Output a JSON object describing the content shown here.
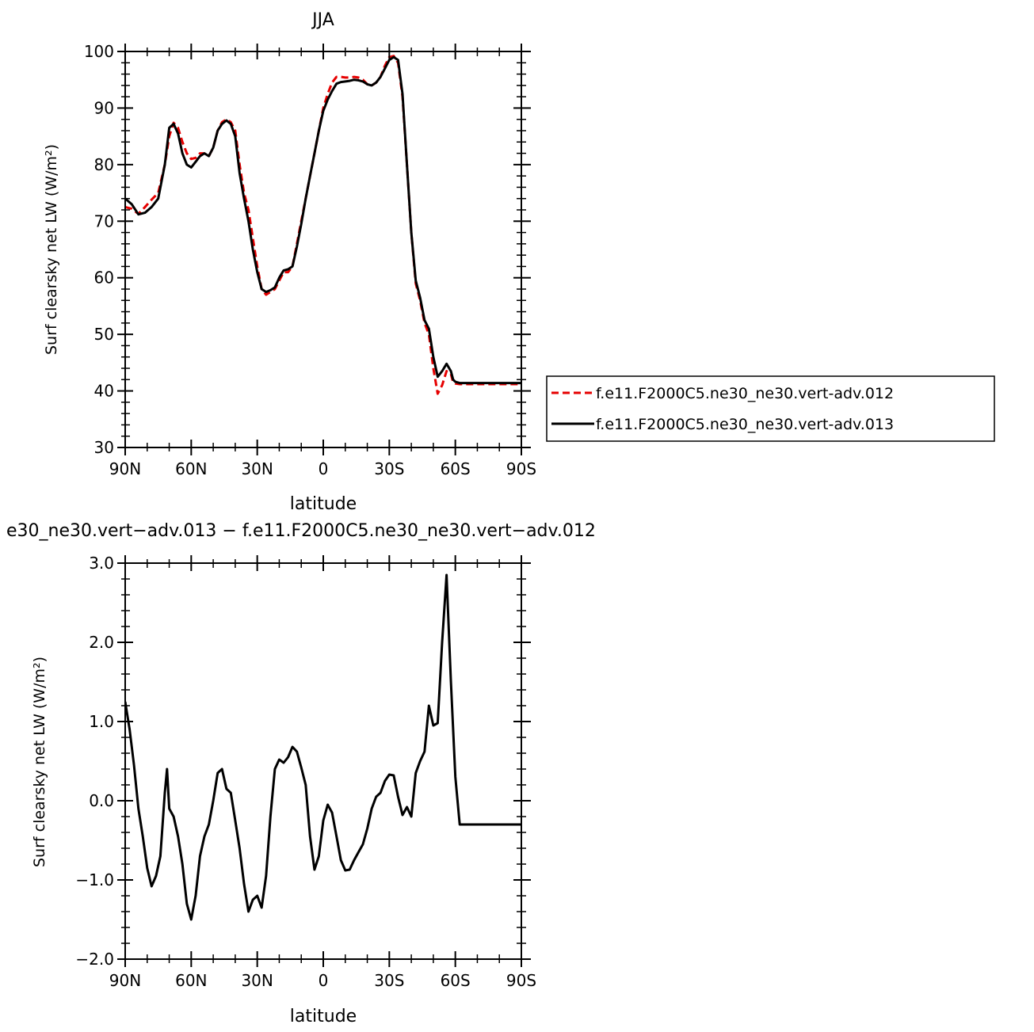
{
  "chart_data": [
    {
      "type": "line",
      "title": "JJA",
      "xlabel": "latitude",
      "ylabel": "Surf clearsky net LW (W/m²)",
      "xlim": [
        90,
        -90
      ],
      "ylim": [
        30,
        100
      ],
      "xticks": [
        90,
        60,
        30,
        0,
        -30,
        -60,
        -90
      ],
      "xtick_labels": [
        "90N",
        "60N",
        "30N",
        "0",
        "30S",
        "60S",
        "90S"
      ],
      "yticks": [
        30,
        40,
        50,
        60,
        70,
        80,
        90,
        100
      ],
      "ytick_labels": [
        "30",
        "40",
        "50",
        "60",
        "70",
        "80",
        "90",
        "100"
      ],
      "legend_position": "right",
      "series": [
        {
          "name": "f.e11.F2000C5.ne30_ne30.vert-adv.012",
          "color": "#e60000",
          "dash": "dashed",
          "x": [
            90,
            87,
            84,
            81,
            78,
            75,
            72,
            70,
            68,
            66,
            64,
            62,
            60,
            58,
            56,
            54,
            52,
            50,
            48,
            46,
            44,
            42,
            40,
            38,
            36,
            34,
            32,
            30,
            28,
            26,
            24,
            22,
            20,
            18,
            16,
            14,
            12,
            10,
            8,
            6,
            4,
            2,
            0,
            -2,
            -4,
            -6,
            -8,
            -10,
            -12,
            -14,
            -16,
            -18,
            -20,
            -22,
            -24,
            -26,
            -28,
            -30,
            -32,
            -34,
            -36,
            -38,
            -40,
            -42,
            -44,
            -46,
            -48,
            -50,
            -52,
            -54,
            -56,
            -58,
            -59,
            -60,
            -62,
            -64,
            -66,
            -68,
            -70,
            -72,
            -74,
            -76,
            -78,
            -80,
            -82,
            -84,
            -86,
            -88,
            -90
          ],
          "y": [
            72.5,
            72.2,
            71.3,
            72.5,
            73.8,
            75.0,
            80.0,
            85.0,
            87.4,
            86.5,
            84.0,
            82.0,
            81.0,
            81.2,
            82.0,
            82.0,
            81.5,
            83.0,
            86.0,
            87.5,
            88.0,
            87.5,
            86.0,
            80.0,
            75.0,
            72.0,
            67.0,
            62.0,
            58.0,
            57.0,
            57.5,
            58.0,
            59.5,
            61.0,
            61.0,
            62.0,
            66.0,
            70.0,
            74.0,
            78.0,
            82.0,
            86.0,
            90.0,
            92.5,
            94.5,
            95.5,
            95.5,
            95.4,
            95.4,
            95.5,
            95.4,
            95.0,
            94.2,
            94.0,
            94.5,
            95.5,
            97.5,
            99.0,
            99.2,
            98.0,
            92.0,
            80.0,
            68.0,
            59.0,
            56.0,
            52.0,
            50.0,
            44.0,
            39.5,
            41.0,
            43.5,
            43.0,
            41.5,
            41.3,
            41.2,
            41.2,
            41.2,
            41.2,
            41.2,
            41.2,
            41.2,
            41.2,
            41.2,
            41.2,
            41.2,
            41.2,
            41.2,
            41.2,
            41.2
          ]
        },
        {
          "name": "f.e11.F2000C5.ne30_ne30.vert-adv.013",
          "color": "#000000",
          "dash": "solid",
          "x": [
            90,
            87,
            84,
            81,
            78,
            75,
            72,
            70,
            68,
            66,
            64,
            62,
            60,
            58,
            56,
            54,
            52,
            50,
            48,
            46,
            44,
            42,
            40,
            38,
            36,
            34,
            32,
            30,
            28,
            26,
            24,
            22,
            20,
            18,
            16,
            14,
            12,
            10,
            8,
            6,
            4,
            2,
            0,
            -2,
            -4,
            -6,
            -8,
            -10,
            -12,
            -14,
            -16,
            -18,
            -20,
            -22,
            -24,
            -26,
            -28,
            -30,
            -32,
            -34,
            -36,
            -38,
            -40,
            -42,
            -44,
            -46,
            -48,
            -50,
            -52,
            -54,
            -56,
            -58,
            -59,
            -60,
            -62,
            -64,
            -66,
            -68,
            -70,
            -72,
            -74,
            -76,
            -78,
            -80,
            -82,
            -84,
            -86,
            -88,
            -90
          ],
          "y": [
            74.0,
            73.0,
            71.2,
            71.5,
            72.5,
            74.0,
            80.0,
            86.5,
            87.2,
            85.5,
            82.0,
            80.0,
            79.5,
            80.5,
            81.5,
            82.0,
            81.5,
            83.0,
            86.0,
            87.2,
            87.8,
            87.2,
            85.0,
            78.5,
            74.0,
            70.0,
            65.0,
            61.0,
            58.0,
            57.5,
            57.8,
            58.3,
            60.0,
            61.3,
            61.5,
            62.0,
            65.5,
            69.5,
            74.0,
            78.0,
            82.0,
            86.0,
            89.5,
            91.5,
            93.0,
            94.3,
            94.6,
            94.7,
            94.8,
            95.0,
            94.9,
            94.7,
            94.2,
            94.0,
            94.5,
            95.5,
            97.0,
            98.5,
            99.0,
            98.5,
            92.5,
            80.0,
            68.0,
            59.5,
            56.5,
            52.5,
            51.0,
            46.0,
            42.5,
            43.5,
            44.8,
            43.5,
            42.0,
            41.6,
            41.4,
            41.4,
            41.4,
            41.4,
            41.4,
            41.4,
            41.4,
            41.4,
            41.4,
            41.4,
            41.4,
            41.4,
            41.4,
            41.4,
            41.4
          ]
        }
      ]
    },
    {
      "type": "line",
      "title": "e30_ne30.vert−adv.013 − f.e11.F2000C5.ne30_ne30.vert−adv.012",
      "xlabel": "latitude",
      "ylabel": "Surf clearsky net LW (W/m²)",
      "xlim": [
        90,
        -90
      ],
      "ylim": [
        -2.0,
        3.0
      ],
      "xticks": [
        90,
        60,
        30,
        0,
        -30,
        -60,
        -90
      ],
      "xtick_labels": [
        "90N",
        "60N",
        "30N",
        "0",
        "30S",
        "60S",
        "90S"
      ],
      "yticks": [
        -2.0,
        -1.0,
        0.0,
        1.0,
        2.0,
        3.0
      ],
      "ytick_labels": [
        "−2.0",
        "−1.0",
        "0.0",
        "1.0",
        "2.0",
        "3.0"
      ],
      "series": [
        {
          "color": "#000000",
          "dash": "solid",
          "x": [
            90,
            88,
            86,
            84,
            82,
            80,
            78,
            76,
            74,
            72,
            71,
            70,
            68,
            66,
            64,
            62,
            60,
            58,
            56,
            54,
            52,
            50,
            48,
            46,
            44,
            42,
            40,
            38,
            36,
            34,
            32,
            30,
            28,
            26,
            24,
            22,
            20,
            18,
            16,
            14,
            12,
            10,
            8,
            6,
            4,
            2,
            0,
            -2,
            -4,
            -6,
            -8,
            -10,
            -12,
            -14,
            -16,
            -18,
            -20,
            -22,
            -24,
            -26,
            -28,
            -30,
            -32,
            -34,
            -36,
            -38,
            -40,
            -42,
            -44,
            -46,
            -48,
            -50,
            -52,
            -54,
            -56,
            -58,
            -60,
            -62,
            -64,
            -66,
            -68,
            -70,
            -72,
            -74,
            -76,
            -77,
            -78,
            -80,
            -82,
            -84,
            -86,
            -88,
            -90
          ],
          "y": [
            1.25,
            0.9,
            0.45,
            -0.1,
            -0.45,
            -0.85,
            -1.08,
            -0.95,
            -0.7,
            0.1,
            0.4,
            -0.1,
            -0.2,
            -0.45,
            -0.8,
            -1.3,
            -1.5,
            -1.2,
            -0.7,
            -0.45,
            -0.3,
            0.0,
            0.35,
            0.4,
            0.15,
            0.1,
            -0.25,
            -0.6,
            -1.05,
            -1.4,
            -1.25,
            -1.2,
            -1.35,
            -0.95,
            -0.2,
            0.4,
            0.52,
            0.48,
            0.55,
            0.68,
            0.62,
            0.42,
            0.2,
            -0.45,
            -0.87,
            -0.7,
            -0.25,
            -0.05,
            -0.15,
            -0.45,
            -0.75,
            -0.88,
            -0.87,
            -0.75,
            -0.65,
            -0.55,
            -0.35,
            -0.1,
            0.05,
            0.1,
            0.25,
            0.33,
            0.32,
            0.05,
            -0.18,
            -0.08,
            -0.2,
            0.35,
            0.5,
            0.62,
            1.2,
            0.95,
            0.98,
            2.0,
            2.85,
            1.5,
            0.3,
            -0.3,
            -0.3,
            -0.3,
            -0.3,
            -0.3,
            -0.3,
            -0.3,
            -0.3,
            -0.3,
            -0.3,
            -0.3,
            -0.3,
            -0.3,
            -0.3,
            -0.3,
            -0.3
          ]
        }
      ]
    }
  ]
}
